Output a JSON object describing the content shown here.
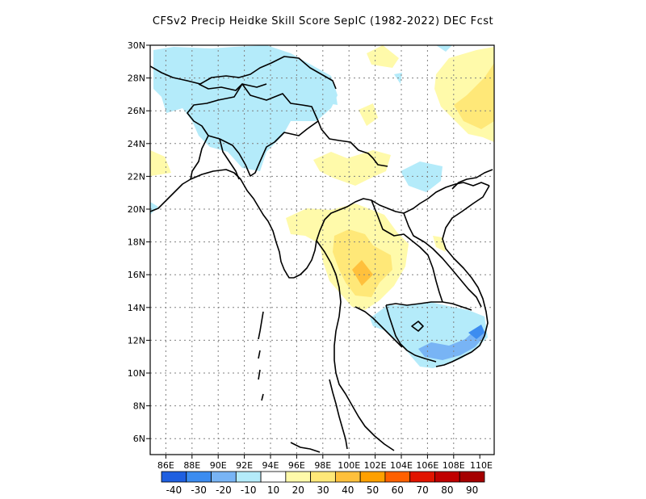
{
  "title": "CFSv2 Precip Heidke Skill Score SepIC (1982-2022) DEC Fcst",
  "lat_labels": [
    "30N",
    "28N",
    "26N",
    "24N",
    "22N",
    "20N",
    "18N",
    "16N",
    "14N",
    "12N",
    "10N",
    "8N",
    "6N"
  ],
  "lon_labels": [
    "86E",
    "88E",
    "90E",
    "92E",
    "94E",
    "96E",
    "98E",
    "100E",
    "102E",
    "104E",
    "106E",
    "108E",
    "110E"
  ],
  "colorbar": {
    "colors": [
      "#1f5fe0",
      "#3c8cf0",
      "#78b4f5",
      "#b4ebfa",
      "#ffffff",
      "#fffaaa",
      "#ffe878",
      "#ffc03c",
      "#ffa000",
      "#ff6000",
      "#e11400",
      "#c00000",
      "#a50000"
    ],
    "labels": [
      "-40",
      "-30",
      "-20",
      "-10",
      "10",
      "20",
      "30",
      "40",
      "50",
      "60",
      "70",
      "80",
      "90"
    ]
  },
  "colors": {
    "light_blue": "#b4ebfa",
    "mid_blue": "#78b4f5",
    "dark_blue": "#3c8cf0",
    "light_yellow": "#fffaaa",
    "yellow": "#ffe878",
    "orange": "#ffc03c",
    "dark_orange": "#ffa000"
  }
}
